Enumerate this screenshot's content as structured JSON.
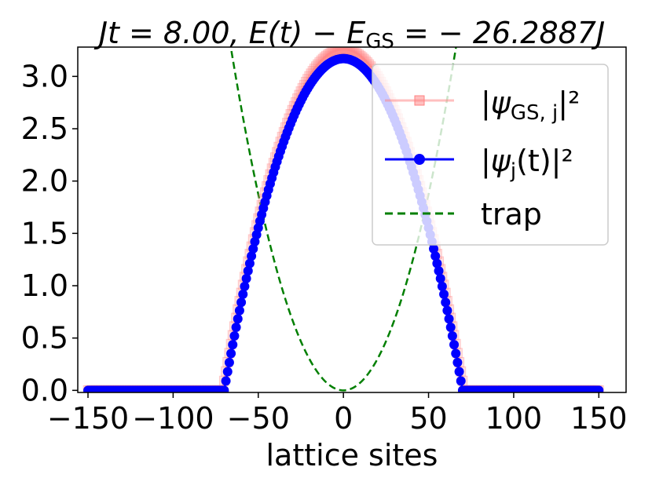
{
  "chart_data": {
    "type": "line",
    "title": {
      "lhs": "Jt = 8.00,  E(t) − E",
      "lhs_sub": "GS",
      "rhs": " = − 26.2887J"
    },
    "xlabel": "lattice sites",
    "ylabel": "",
    "xlim": [
      -156,
      166
    ],
    "ylim": [
      -0.02,
      3.28
    ],
    "xticks": [
      -150,
      -100,
      -50,
      0,
      50,
      100,
      150
    ],
    "xtick_labels": [
      "−150",
      "−100",
      "−50",
      "0",
      "50",
      "100",
      "150"
    ],
    "yticks": [
      0.0,
      0.5,
      1.0,
      1.5,
      2.0,
      2.5,
      3.0
    ],
    "ytick_labels": [
      "0.0",
      "0.5",
      "1.0",
      "1.5",
      "2.0",
      "2.5",
      "3.0"
    ],
    "grid": false,
    "legend_position": "top-right",
    "series": [
      {
        "name": "|ψGS,j|²",
        "legend_main": "|ψ",
        "legend_sub": "GS, j",
        "legend_tail": "|²",
        "style": "square-markers",
        "color": "#ff8080",
        "x_range": [
          -150,
          150
        ],
        "profile": "thomas-fermi",
        "peak": 3.26,
        "radius": 71
      },
      {
        "name": "|ψj(t)|²",
        "legend_main": "|ψ",
        "legend_sub": "j",
        "legend_tail": "(t)|²",
        "style": "circle-markers",
        "color": "#0000ff",
        "x_range": [
          -150,
          150
        ],
        "profile": "thomas-fermi",
        "peak": 3.17,
        "radius": 70
      },
      {
        "name": "trap",
        "style": "dashed",
        "color": "#007f00",
        "profile": "harmonic",
        "coefficient": 0.00075
      }
    ]
  }
}
